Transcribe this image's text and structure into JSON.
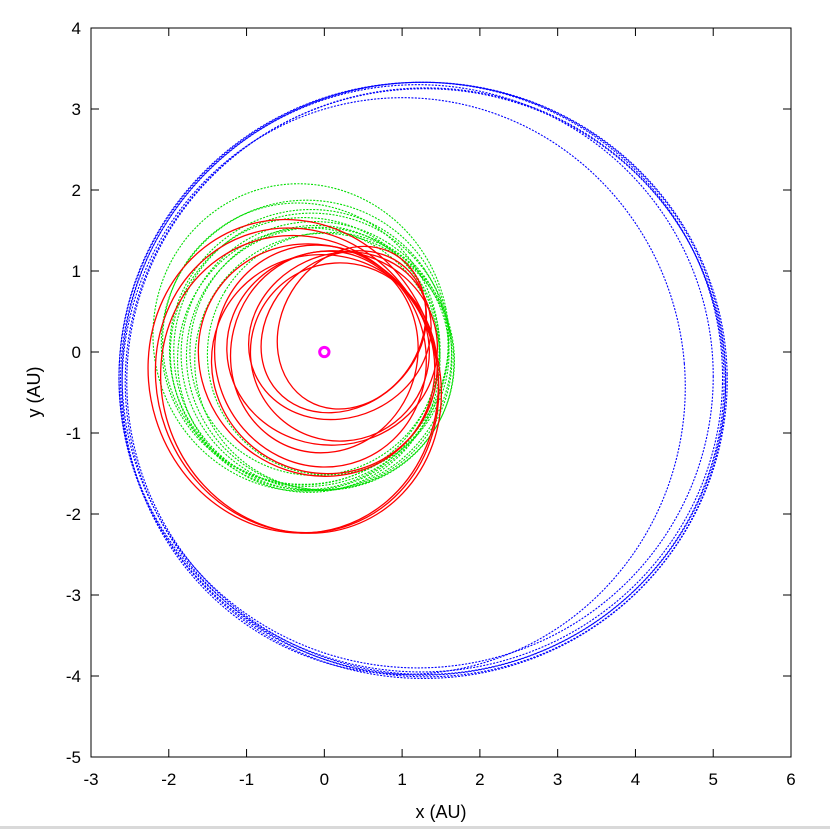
{
  "chart_data": {
    "type": "scatter",
    "title": "",
    "xlabel": "x (AU)",
    "ylabel": "y (AU)",
    "xlim": [
      -3,
      6
    ],
    "ylim": [
      -5,
      4
    ],
    "xticks": [
      -3,
      -2,
      -1,
      0,
      1,
      2,
      3,
      4,
      5,
      6
    ],
    "yticks": [
      4,
      3,
      2,
      1,
      0,
      -1,
      -2,
      -3,
      -4,
      -5
    ],
    "grid": false,
    "legend": "none",
    "series": [
      {
        "color": "#0000ff",
        "style": "dotted",
        "orbits": [
          {
            "cx": 1.26,
            "cy": -0.33,
            "rx": 3.9,
            "ry": 3.66,
            "rot": 0.0
          },
          {
            "cx": 1.28,
            "cy": -0.35,
            "rx": 3.9,
            "ry": 3.68,
            "rot": 0.02
          },
          {
            "cx": 1.24,
            "cy": -0.31,
            "rx": 3.88,
            "ry": 3.64,
            "rot": -0.02
          },
          {
            "cx": 1.3,
            "cy": -0.36,
            "rx": 3.84,
            "ry": 3.62,
            "rot": 0.04
          },
          {
            "cx": 1.02,
            "cy": -0.42,
            "rx": 3.62,
            "ry": 3.56,
            "rot": 0.08
          },
          {
            "cx": 1.3,
            "cy": -0.38,
            "rx": 3.86,
            "ry": 3.63,
            "rot": -0.05
          },
          {
            "cx": 1.2,
            "cy": -0.3,
            "rx": 3.8,
            "ry": 3.6,
            "rot": 0.0
          }
        ]
      },
      {
        "color": "#00dd00",
        "style": "dotted",
        "orbits": [
          {
            "cx": -0.3,
            "cy": 0.18,
            "rx": 1.9,
            "ry": 1.9,
            "rot": 0.2
          },
          {
            "cx": -0.25,
            "cy": 0.12,
            "rx": 1.85,
            "ry": 1.75,
            "rot": 0.4
          },
          {
            "cx": -0.2,
            "cy": 0.05,
            "rx": 1.8,
            "ry": 1.7,
            "rot": 0.6
          },
          {
            "cx": -0.15,
            "cy": 0.0,
            "rx": 1.78,
            "ry": 1.72,
            "rot": 0.8
          },
          {
            "cx": -0.1,
            "cy": -0.05,
            "rx": 1.72,
            "ry": 1.68,
            "rot": 1.0
          },
          {
            "cx": -0.05,
            "cy": -0.08,
            "rx": 1.68,
            "ry": 1.66,
            "rot": 1.2
          },
          {
            "cx": 0.0,
            "cy": -0.12,
            "rx": 1.65,
            "ry": 1.6,
            "rot": 1.4
          },
          {
            "cx": -0.2,
            "cy": -0.1,
            "rx": 1.7,
            "ry": 1.62,
            "rot": 1.6
          },
          {
            "cx": -0.25,
            "cy": -0.02,
            "rx": 1.75,
            "ry": 1.66,
            "rot": 1.8
          },
          {
            "cx": -0.3,
            "cy": 0.1,
            "rx": 1.82,
            "ry": 1.7,
            "rot": 2.0
          },
          {
            "cx": -0.12,
            "cy": 0.02,
            "rx": 1.6,
            "ry": 1.55,
            "rot": 2.3
          },
          {
            "cx": 0.05,
            "cy": -0.02,
            "rx": 1.55,
            "ry": 1.5,
            "rot": 2.6
          }
        ]
      },
      {
        "color": "#ff0000",
        "style": "solid",
        "orbits": [
          {
            "cx": -0.4,
            "cy": -0.3,
            "rx": 1.85,
            "ry": 1.95,
            "rot": 0.3
          },
          {
            "cx": -0.35,
            "cy": -0.35,
            "rx": 1.8,
            "ry": 1.9,
            "rot": 0.35
          },
          {
            "cx": -0.3,
            "cy": -0.4,
            "rx": 1.78,
            "ry": 1.86,
            "rot": 0.4
          },
          {
            "cx": -0.1,
            "cy": -0.1,
            "rx": 1.45,
            "ry": 1.5,
            "rot": 0.9
          },
          {
            "cx": 0.0,
            "cy": -0.15,
            "rx": 1.4,
            "ry": 1.4,
            "rot": 1.2
          },
          {
            "cx": 0.1,
            "cy": 0.05,
            "rx": 1.25,
            "ry": 1.3,
            "rot": 1.6
          },
          {
            "cx": 0.2,
            "cy": 0.2,
            "rx": 1.05,
            "ry": 1.15,
            "rot": 2.0
          },
          {
            "cx": 0.25,
            "cy": 0.25,
            "rx": 0.95,
            "ry": 1.1,
            "rot": 2.3
          },
          {
            "cx": 0.35,
            "cy": 0.3,
            "rx": 0.9,
            "ry": 1.05,
            "rot": 2.6
          },
          {
            "cx": 0.0,
            "cy": 0.0,
            "rx": 1.2,
            "ry": 1.25,
            "rot": 2.9
          },
          {
            "cx": 0.2,
            "cy": 0.0,
            "rx": 1.15,
            "ry": 1.1,
            "rot": 3.2
          },
          {
            "cx": -0.05,
            "cy": -0.05,
            "rx": 1.35,
            "ry": 1.38,
            "rot": 3.5
          }
        ]
      }
    ],
    "marker": {
      "x": 0.0,
      "y": 0.0,
      "r": 0.06,
      "color": "#ff00ff"
    }
  }
}
